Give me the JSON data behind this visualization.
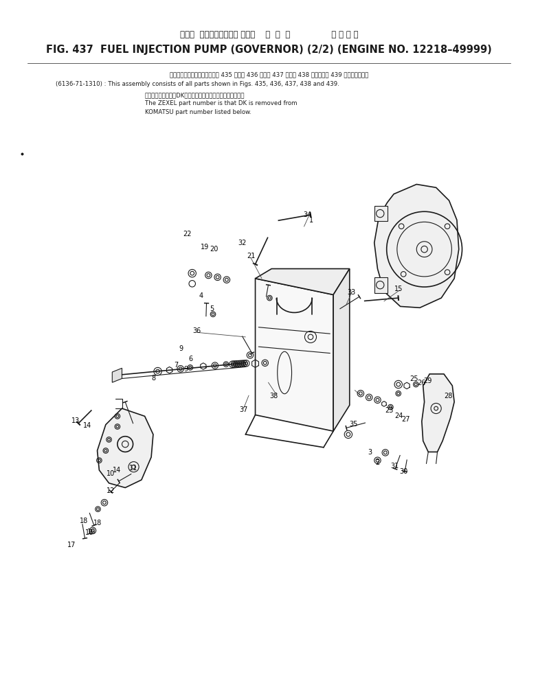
{
  "title_japanese": "フェル  インジェクション ポンプ    ガ  バ  ナ                適 用 号 機",
  "title_english": "FIG. 437  FUEL INJECTION PUMP (GOVERNOR) (2/2) (ENGINE NO. 12218–49999)",
  "note_line1": "このアセンブリの構成部品は第 435 図、第 436 図、第 437 図、第 438 図および第 439 図を含みます。",
  "note_line2": "(6136-71-1310) : This assembly consists of all parts shown in Figs. 435, 436, 437, 438 and 439.",
  "note_line3": "品番のメーカー記号DKを除いたものがゼクセルの品番です。",
  "note_line4": "The ZEXEL part number is that DK is removed from",
  "note_line5": "KOMATSU part number listed below.",
  "bg_color": "#ffffff",
  "text_color": "#000000",
  "diagram_color": "#1a1a1a",
  "figsize": [
    7.83,
    10.14
  ],
  "dpi": 100
}
